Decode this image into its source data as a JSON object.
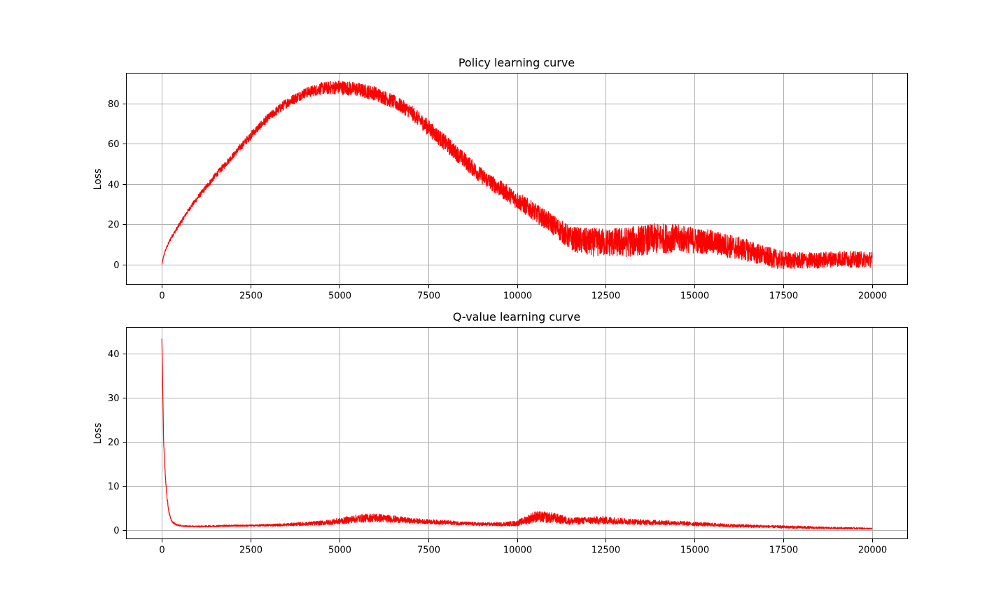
{
  "chart_data": [
    {
      "type": "line",
      "title": "Policy learning curve",
      "xlabel": "",
      "ylabel": "Loss",
      "xlim": [
        -1000,
        21000
      ],
      "ylim": [
        -10,
        95
      ],
      "xticks": [
        0,
        2500,
        5000,
        7500,
        10000,
        12500,
        15000,
        17500,
        20000
      ],
      "xtick_labels": [
        "0",
        "2500",
        "5000",
        "7500",
        "10000",
        "12500",
        "15000",
        "17500",
        "20000"
      ],
      "yticks": [
        0,
        20,
        40,
        60,
        80
      ],
      "ytick_labels": [
        "0",
        "20",
        "40",
        "60",
        "80"
      ],
      "grid": true,
      "color": "#ff0000",
      "series": [
        {
          "x": [
            0,
            50,
            100,
            250,
            500,
            750,
            1000,
            1500,
            2000,
            2500,
            3000,
            3500,
            4000,
            4500,
            5000,
            5500,
            6000,
            6500,
            7000,
            7500,
            8000,
            8500,
            9000,
            9500,
            10000,
            10500,
            11000,
            11500,
            12000,
            12500,
            13000,
            13500,
            14000,
            14500,
            15000,
            15500,
            16000,
            16500,
            17000,
            17500,
            18000,
            18500,
            19000,
            19500,
            20000
          ],
          "values": [
            0,
            4,
            7,
            13,
            20,
            27,
            33,
            44,
            54,
            64,
            73,
            80,
            85,
            87.5,
            88,
            87,
            85,
            81,
            76,
            68,
            60,
            52,
            44,
            38,
            32,
            26,
            20,
            13,
            11,
            11,
            11,
            12,
            13,
            13,
            12,
            11,
            9,
            7,
            4,
            2,
            2,
            2,
            3,
            2.5,
            2.5
          ],
          "noise": [
            0,
            0.5,
            0.5,
            0.8,
            1,
            1,
            1.2,
            1.5,
            1.5,
            2,
            2,
            2.5,
            2.5,
            3,
            3.5,
            3.5,
            3.5,
            3.5,
            3.5,
            4,
            4,
            4,
            4,
            4,
            4.5,
            4.5,
            5,
            6,
            7,
            7,
            7.5,
            7.5,
            7.5,
            7,
            6.5,
            6,
            6,
            5.5,
            5,
            4.5,
            4,
            4,
            4,
            4,
            4
          ]
        }
      ]
    },
    {
      "type": "line",
      "title": "Q-value learning curve",
      "xlabel": "",
      "ylabel": "Loss",
      "xlim": [
        -1000,
        21000
      ],
      "ylim": [
        -2,
        46
      ],
      "xticks": [
        0,
        2500,
        5000,
        7500,
        10000,
        12500,
        15000,
        17500,
        20000
      ],
      "xtick_labels": [
        "0",
        "2500",
        "5000",
        "7500",
        "10000",
        "12500",
        "15000",
        "17500",
        "20000"
      ],
      "yticks": [
        0,
        10,
        20,
        30,
        40
      ],
      "ytick_labels": [
        "0",
        "10",
        "20",
        "30",
        "40"
      ],
      "grid": true,
      "color": "#ff0000",
      "series": [
        {
          "x": [
            0,
            20,
            50,
            100,
            150,
            200,
            250,
            300,
            400,
            600,
            1000,
            1500,
            2000,
            2500,
            3000,
            3500,
            4000,
            4500,
            5000,
            5500,
            6000,
            6500,
            7000,
            7500,
            8000,
            8500,
            9000,
            9500,
            10000,
            10500,
            11000,
            11500,
            12000,
            12500,
            13000,
            13500,
            14000,
            14500,
            15000,
            15500,
            16000,
            16500,
            17000,
            17500,
            18000,
            18500,
            19000,
            19500,
            20000
          ],
          "values": [
            43,
            35,
            20,
            12,
            7,
            4,
            2.5,
            1.8,
            1.2,
            0.9,
            0.8,
            0.9,
            1.0,
            1.0,
            1.1,
            1.2,
            1.4,
            1.6,
            2.0,
            2.6,
            2.8,
            2.5,
            2.1,
            1.9,
            1.7,
            1.5,
            1.3,
            1.3,
            1.5,
            3.0,
            2.8,
            2.0,
            2.2,
            2.2,
            2.0,
            1.8,
            1.7,
            1.6,
            1.4,
            1.2,
            1.0,
            0.9,
            0.8,
            0.7,
            0.6,
            0.5,
            0.45,
            0.4,
            0.3
          ],
          "noise": [
            0.5,
            0.5,
            0.5,
            0.5,
            0.4,
            0.3,
            0.2,
            0.2,
            0.15,
            0.15,
            0.15,
            0.2,
            0.2,
            0.2,
            0.25,
            0.3,
            0.4,
            0.5,
            0.7,
            0.9,
            1.0,
            0.8,
            0.6,
            0.5,
            0.5,
            0.4,
            0.4,
            0.4,
            0.6,
            1.3,
            1.2,
            0.8,
            0.8,
            0.9,
            0.7,
            0.6,
            0.55,
            0.5,
            0.45,
            0.4,
            0.35,
            0.35,
            0.3,
            0.3,
            0.3,
            0.25,
            0.2,
            0.2,
            0.15
          ]
        }
      ]
    }
  ]
}
